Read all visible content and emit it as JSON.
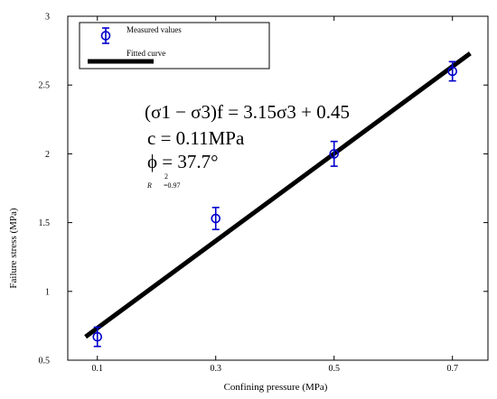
{
  "chart_data": {
    "type": "scatter",
    "title": "",
    "xlabel": "Confining pressure (MPa)",
    "ylabel": "Failure stress (MPa)",
    "xlim": [
      0.05,
      0.76
    ],
    "ylim": [
      0.5,
      3.0
    ],
    "x_ticks": [
      "0.1",
      "0.3",
      "0.5",
      "0.7"
    ],
    "y_ticks": [
      "0.5",
      "1",
      "1.5",
      "2",
      "2.5",
      "3"
    ],
    "x_tick_values": [
      0.1,
      0.3,
      0.5,
      0.7
    ],
    "y_tick_values": [
      0.5,
      1.0,
      1.5,
      2.0,
      2.5,
      3.0
    ],
    "grid": false,
    "legend_position": "top-left",
    "series": [
      {
        "name": "Measured values",
        "kind": "errorbar-markers",
        "color": "#0000cc",
        "marker": "circle",
        "x": [
          0.1,
          0.3,
          0.5,
          0.7
        ],
        "y": [
          0.67,
          1.53,
          2.0,
          2.6
        ],
        "err": [
          0.07,
          0.08,
          0.09,
          0.07
        ]
      },
      {
        "name": "Fitted curve",
        "kind": "line",
        "color": "#000000",
        "x": [
          0.08,
          0.73
        ],
        "y": [
          0.67,
          2.73
        ]
      }
    ],
    "annotations": {
      "equation_main": "(σ1 − σ3)f = 3.15σ3 + 0.45",
      "c_line": "c = 0.11MPa",
      "phi_line": "ϕ = 37.7°",
      "r2_symbol": "R",
      "r2_exponent": "2",
      "r2_value": "=0.97"
    }
  }
}
